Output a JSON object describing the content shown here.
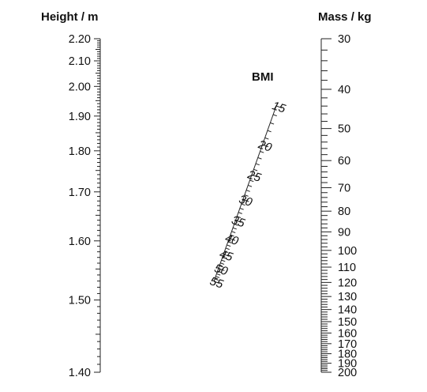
{
  "height_scale": {
    "title": "Height / m",
    "min": 1.4,
    "max": 2.2,
    "labels": [
      "2.20",
      "2.10",
      "2.00",
      "1.90",
      "1.80",
      "1.70",
      "1.60",
      "1.50",
      "1.40"
    ]
  },
  "mass_scale": {
    "title": "Mass / kg",
    "min": 30,
    "max": 200,
    "labels": [
      "30",
      "40",
      "50",
      "60",
      "70",
      "80",
      "90",
      "100",
      "110",
      "120",
      "130",
      "140",
      "150",
      "160",
      "170",
      "180",
      "190",
      "200"
    ]
  },
  "bmi_scale": {
    "title": "BMI",
    "min": 15,
    "max": 55,
    "labels": [
      "15",
      "20",
      "25",
      "30",
      "35",
      "40",
      "45",
      "50",
      "55"
    ]
  },
  "colors": {
    "ink": "#111111",
    "background": "#ffffff"
  }
}
